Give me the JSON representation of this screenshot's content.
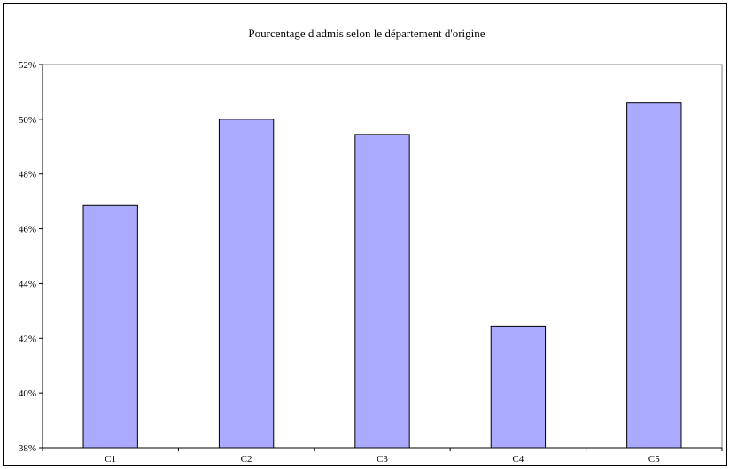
{
  "chart_data": {
    "type": "bar",
    "title": "Pourcentage d'admis selon le département d'origine",
    "xlabel": "",
    "ylabel": "",
    "categories": [
      "C1",
      "C2",
      "C3",
      "C4",
      "C5"
    ],
    "values": [
      46.85,
      50.0,
      49.45,
      42.45,
      50.62
    ],
    "ylim": [
      38,
      52
    ],
    "yticks": [
      38,
      40,
      42,
      44,
      46,
      48,
      50,
      52
    ],
    "ytick_format": "{v}%",
    "grid": false,
    "legend": "none",
    "colors": {
      "bar_fill": "#aaaaff",
      "bar_stroke": "#000000"
    }
  }
}
